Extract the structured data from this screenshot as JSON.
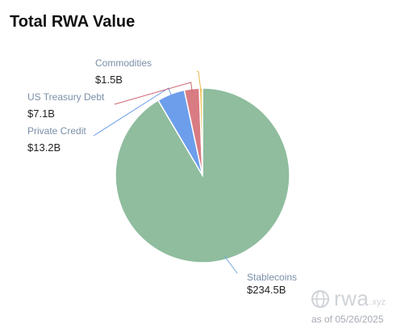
{
  "chart_data": {
    "type": "pie",
    "title": "Total RWA Value",
    "slices": [
      {
        "label": "Stablecoins",
        "value_label": "$234.5B",
        "value": 234.5,
        "color": "#8fbd9e",
        "leader": "#6fa8dc"
      },
      {
        "label": "Private Credit",
        "value_label": "$13.2B",
        "value": 13.2,
        "color": "#6d9eeb",
        "leader": "#6d9eeb"
      },
      {
        "label": "US Treasury Debt",
        "value_label": "$7.1B",
        "value": 7.1,
        "color": "#d97b82",
        "leader": "#cc6670"
      },
      {
        "label": "Commodities",
        "value_label": "$1.5B",
        "value": 1.5,
        "color": "#f4cc72",
        "leader": "#e8b84a"
      }
    ]
  },
  "brand": {
    "name": "rwa",
    "tld": ".xyz",
    "icon": "globe-icon"
  },
  "as_of": "as of 05/26/2025"
}
